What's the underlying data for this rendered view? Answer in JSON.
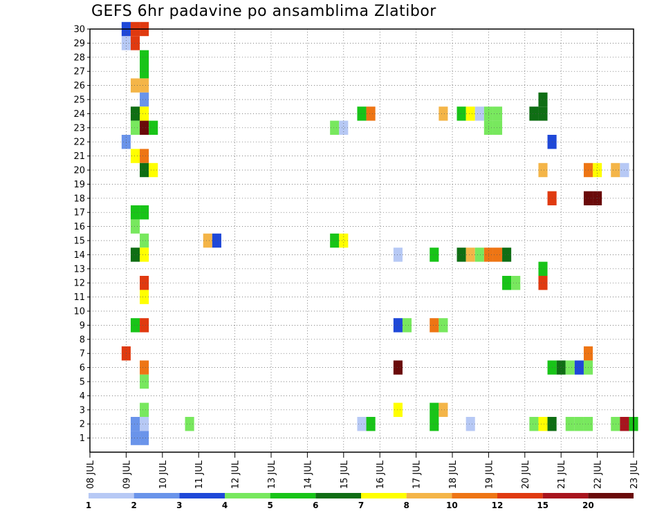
{
  "chart_data": {
    "type": "heatmap",
    "title": "GEFS 6hr padavine po ansamblima Zlatibor",
    "y_ticks": [
      "1",
      "2",
      "3",
      "4",
      "5",
      "6",
      "7",
      "8",
      "9",
      "10",
      "11",
      "12",
      "13",
      "14",
      "15",
      "16",
      "17",
      "18",
      "19",
      "20",
      "21",
      "22",
      "23",
      "24",
      "25",
      "26",
      "27",
      "28",
      "29",
      "30"
    ],
    "x_ticks": [
      "08 JUL",
      "09 JUL",
      "10 JUL",
      "11 JUL",
      "12 JUL",
      "13 JUL",
      "14 JUL",
      "15 JUL",
      "16 JUL",
      "17 JUL",
      "18 JUL",
      "19 JUL",
      "20 JUL",
      "21 JUL",
      "22 JUL",
      "23 JUL"
    ],
    "xlim": [
      "08 JUL 00",
      "23 JUL 00"
    ],
    "ylim": [
      0,
      30
    ],
    "grid": true,
    "colorbar": {
      "labels": [
        "1",
        "2",
        "3",
        "4",
        "5",
        "6",
        "7",
        "8",
        "10",
        "12",
        "15",
        "20"
      ],
      "colors": [
        "#b7c9f5",
        "#6a94ea",
        "#1f48d8",
        "#78e85e",
        "#18c418",
        "#0f6e14",
        "#ffff00",
        "#f4b548",
        "#ee7514",
        "#e03a10",
        "#a8141e",
        "#6a0a0a"
      ]
    },
    "cells": [
      {
        "t": "09 JUL 00",
        "m": 29,
        "c": 1
      },
      {
        "t": "09 JUL 00",
        "m": 30,
        "c": 3
      },
      {
        "t": "09 JUL 00",
        "m": 22,
        "c": 2
      },
      {
        "t": "09 JUL 06",
        "m": 30,
        "c": 10
      },
      {
        "t": "09 JUL 06",
        "m": 29,
        "c": 10
      },
      {
        "t": "09 JUL 12",
        "m": 30,
        "c": 10
      },
      {
        "t": "09 JUL 12",
        "m": 28,
        "c": 5
      },
      {
        "t": "09 JUL 12",
        "m": 27,
        "c": 5
      },
      {
        "t": "09 JUL 06",
        "m": 26,
        "c": 8
      },
      {
        "t": "09 JUL 12",
        "m": 26,
        "c": 8
      },
      {
        "t": "09 JUL 12",
        "m": 25,
        "c": 2
      },
      {
        "t": "09 JUL 06",
        "m": 24,
        "c": 6
      },
      {
        "t": "09 JUL 12",
        "m": 24,
        "c": 7
      },
      {
        "t": "09 JUL 06",
        "m": 23,
        "c": 4
      },
      {
        "t": "09 JUL 12",
        "m": 23,
        "c": 12
      },
      {
        "t": "09 JUL 18",
        "m": 23,
        "c": 5
      },
      {
        "t": "09 JUL 06",
        "m": 21,
        "c": 7
      },
      {
        "t": "09 JUL 12",
        "m": 21,
        "c": 9
      },
      {
        "t": "09 JUL 12",
        "m": 20,
        "c": 6
      },
      {
        "t": "09 JUL 18",
        "m": 20,
        "c": 7
      },
      {
        "t": "09 JUL 06",
        "m": 17,
        "c": 5
      },
      {
        "t": "09 JUL 12",
        "m": 17,
        "c": 5
      },
      {
        "t": "09 JUL 06",
        "m": 16,
        "c": 4
      },
      {
        "t": "09 JUL 12",
        "m": 15,
        "c": 4
      },
      {
        "t": "09 JUL 06",
        "m": 14,
        "c": 6
      },
      {
        "t": "09 JUL 12",
        "m": 14,
        "c": 7
      },
      {
        "t": "09 JUL 12",
        "m": 12,
        "c": 10
      },
      {
        "t": "09 JUL 12",
        "m": 11,
        "c": 7
      },
      {
        "t": "09 JUL 06",
        "m": 9,
        "c": 5
      },
      {
        "t": "09 JUL 12",
        "m": 9,
        "c": 10
      },
      {
        "t": "09 JUL 00",
        "m": 7,
        "c": 10
      },
      {
        "t": "09 JUL 12",
        "m": 6,
        "c": 9
      },
      {
        "t": "09 JUL 12",
        "m": 5,
        "c": 4
      },
      {
        "t": "09 JUL 12",
        "m": 3,
        "c": 4
      },
      {
        "t": "09 JUL 12",
        "m": 2,
        "c": 13
      },
      {
        "t": "09 JUL 06",
        "m": 2,
        "c": 2
      },
      {
        "t": "09 JUL 06",
        "m": 1,
        "c": 2
      },
      {
        "t": "09 JUL 12",
        "m": 1,
        "c": 2
      },
      {
        "t": "11 JUL 06",
        "m": 15,
        "c": 8
      },
      {
        "t": "11 JUL 12",
        "m": 15,
        "c": 3
      },
      {
        "t": "10 JUL 18",
        "m": 2,
        "c": 4
      },
      {
        "t": "14 JUL 18",
        "m": 23,
        "c": 4
      },
      {
        "t": "15 JUL 00",
        "m": 23,
        "c": 13
      },
      {
        "t": "14 JUL 18",
        "m": 15,
        "c": 5
      },
      {
        "t": "15 JUL 00",
        "m": 15,
        "c": 7
      },
      {
        "t": "15 JUL 12",
        "m": 24,
        "c": 5
      },
      {
        "t": "15 JUL 18",
        "m": 24,
        "c": 9
      },
      {
        "t": "15 JUL 12",
        "m": 2,
        "c": 1
      },
      {
        "t": "15 JUL 18",
        "m": 2,
        "c": 5
      },
      {
        "t": "16 JUL 12",
        "m": 3,
        "c": 7
      },
      {
        "t": "16 JUL 12",
        "m": 14,
        "c": 14
      },
      {
        "t": "16 JUL 12",
        "m": 6,
        "c": 12
      },
      {
        "t": "16 JUL 12",
        "m": 9,
        "c": 3
      },
      {
        "t": "16 JUL 18",
        "m": 9,
        "c": 4
      },
      {
        "t": "17 JUL 18",
        "m": 24,
        "c": 8
      },
      {
        "t": "18 JUL 06",
        "m": 24,
        "c": 5
      },
      {
        "t": "18 JUL 12",
        "m": 24,
        "c": 7
      },
      {
        "t": "18 JUL 18",
        "m": 24,
        "c": 1
      },
      {
        "t": "19 JUL 00",
        "m": 24,
        "c": 4
      },
      {
        "t": "19 JUL 06",
        "m": 24,
        "c": 4
      },
      {
        "t": "19 JUL 00",
        "m": 23,
        "c": 4
      },
      {
        "t": "19 JUL 06",
        "m": 23,
        "c": 4
      },
      {
        "t": "17 JUL 12",
        "m": 9,
        "c": 9
      },
      {
        "t": "17 JUL 18",
        "m": 9,
        "c": 4
      },
      {
        "t": "17 JUL 12",
        "m": 3,
        "c": 5
      },
      {
        "t": "17 JUL 18",
        "m": 3,
        "c": 8
      },
      {
        "t": "17 JUL 12",
        "m": 2,
        "c": 5
      },
      {
        "t": "18 JUL 06",
        "m": 14,
        "c": 6
      },
      {
        "t": "18 JUL 12",
        "m": 14,
        "c": 8
      },
      {
        "t": "18 JUL 18",
        "m": 14,
        "c": 4
      },
      {
        "t": "19 JUL 00",
        "m": 14,
        "c": 9
      },
      {
        "t": "19 JUL 06",
        "m": 14,
        "c": 9
      },
      {
        "t": "19 JUL 12",
        "m": 14,
        "c": 6
      },
      {
        "t": "17 JUL 12",
        "m": 14,
        "c": 5
      },
      {
        "t": "18 JUL 12",
        "m": 2,
        "c": 13
      },
      {
        "t": "19 JUL 12",
        "m": 12,
        "c": 5
      },
      {
        "t": "19 JUL 18",
        "m": 12,
        "c": 4
      },
      {
        "t": "20 JUL 12",
        "m": 25,
        "c": 6
      },
      {
        "t": "20 JUL 06",
        "m": 24,
        "c": 6
      },
      {
        "t": "20 JUL 12",
        "m": 24,
        "c": 6
      },
      {
        "t": "20 JUL 12",
        "m": 20,
        "c": 8
      },
      {
        "t": "20 JUL 18",
        "m": 18,
        "c": 10
      },
      {
        "t": "20 JUL 12",
        "m": 13,
        "c": 5
      },
      {
        "t": "20 JUL 12",
        "m": 12,
        "c": 10
      },
      {
        "t": "21 JUL 00",
        "m": 6,
        "c": 6
      },
      {
        "t": "20 JUL 18",
        "m": 6,
        "c": 5
      },
      {
        "t": "21 JUL 06",
        "m": 6,
        "c": 4
      },
      {
        "t": "21 JUL 12",
        "m": 6,
        "c": 3
      },
      {
        "t": "21 JUL 18",
        "m": 6,
        "c": 4
      },
      {
        "t": "20 JUL 06",
        "m": 2,
        "c": 4
      },
      {
        "t": "20 JUL 12",
        "m": 2,
        "c": 7
      },
      {
        "t": "20 JUL 18",
        "m": 2,
        "c": 6
      },
      {
        "t": "21 JUL 06",
        "m": 2,
        "c": 4
      },
      {
        "t": "21 JUL 12",
        "m": 2,
        "c": 4
      },
      {
        "t": "21 JUL 18",
        "m": 2,
        "c": 4
      },
      {
        "t": "22 JUL 12",
        "m": 2,
        "c": 4
      },
      {
        "t": "22 JUL 18",
        "m": 2,
        "c": 11
      },
      {
        "t": "23 JUL 00",
        "m": 2,
        "c": 5
      },
      {
        "t": "21 JUL 18",
        "m": 7,
        "c": 9
      },
      {
        "t": "21 JUL 18",
        "m": 20,
        "c": 9
      },
      {
        "t": "22 JUL 00",
        "m": 20,
        "c": 7
      },
      {
        "t": "22 JUL 12",
        "m": 20,
        "c": 8
      },
      {
        "t": "22 JUL 18",
        "m": 20,
        "c": 13
      },
      {
        "t": "21 JUL 18",
        "m": 18,
        "c": 12
      },
      {
        "t": "22 JUL 00",
        "m": 18,
        "c": 12
      },
      {
        "t": "20 JUL 18",
        "m": 22,
        "c": 3
      }
    ]
  }
}
